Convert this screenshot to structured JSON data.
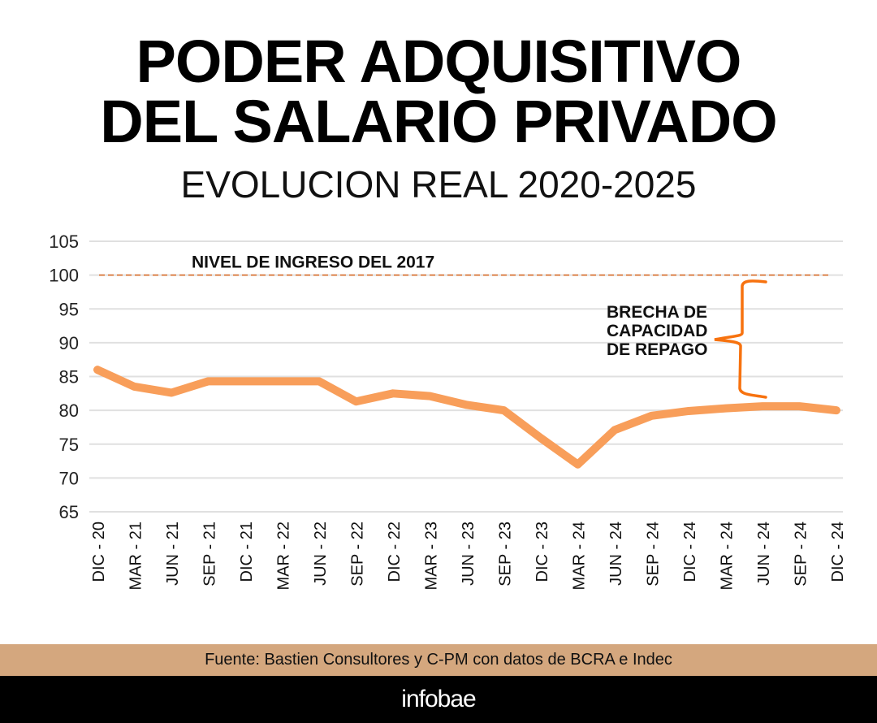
{
  "header": {
    "title_line1": "PODER ADQUISITIVO",
    "title_line2": "DEL SALARIO PRIVADO",
    "subtitle": "EVOLUCION REAL 2020-2025"
  },
  "chart_data": {
    "type": "line",
    "categories": [
      "DIC - 20",
      "MAR - 21",
      "JUN - 21",
      "SEP - 21",
      "DIC - 21",
      "MAR - 22",
      "JUN - 22",
      "SEP - 22",
      "DIC - 22",
      "MAR - 23",
      "JUN - 23",
      "SEP - 23",
      "DIC - 23",
      "MAR - 24",
      "JUN - 24",
      "SEP - 24",
      "DIC - 24",
      "MAR - 24",
      "JUN - 24",
      "SEP - 24",
      "DIC - 24"
    ],
    "values": [
      86.0,
      83.5,
      82.6,
      84.3,
      84.3,
      84.3,
      84.3,
      81.3,
      82.5,
      82.1,
      80.8,
      80.0,
      75.9,
      72.0,
      77.1,
      79.2,
      79.9,
      80.3,
      80.6,
      80.6,
      80.0
    ],
    "ylim": [
      65,
      105
    ],
    "yticks": [
      65,
      70,
      75,
      80,
      85,
      90,
      95,
      100,
      105
    ],
    "grid": true,
    "reference_line": {
      "value": 100,
      "label": "NIVEL DE INGRESO DEL 2017",
      "color": "#D9661F"
    },
    "annotation": {
      "label_lines": [
        "BRECHA DE",
        "CAPACIDAD",
        "DE REPAGO"
      ],
      "color": "#F7720F"
    },
    "line_color": "#F89E5A"
  },
  "footer": {
    "source": "Fuente: Bastien Consultores y C-PM con datos de BCRA e Indec",
    "brand": "infobae"
  }
}
